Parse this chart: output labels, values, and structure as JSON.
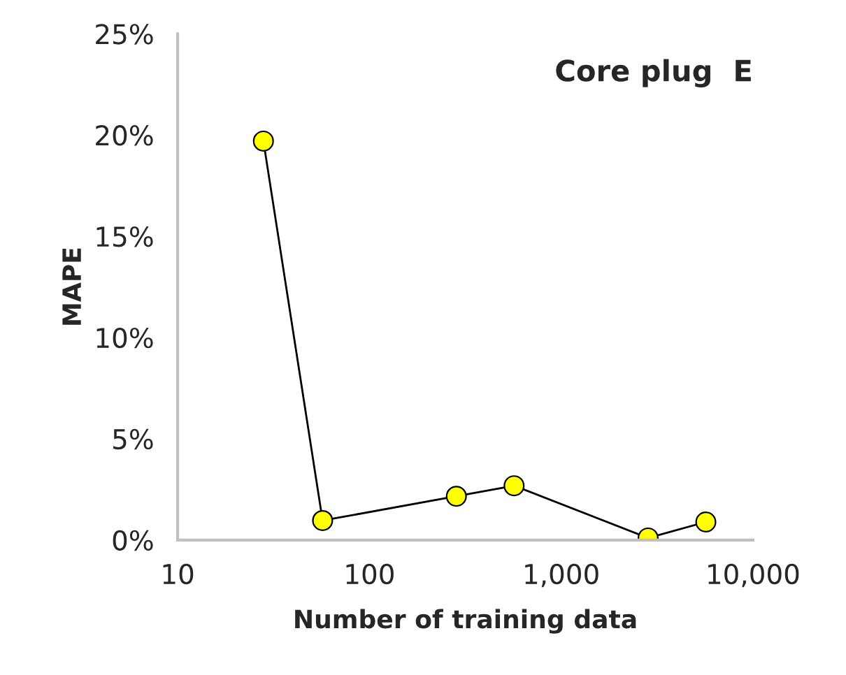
{
  "chart_data": {
    "type": "line",
    "title": "Core plug  E",
    "xlabel": "Number of training data",
    "ylabel": "MAPE",
    "log": "x",
    "marker": "circle",
    "line_style": "solid",
    "grid": false,
    "series": [
      {
        "color": "#000000",
        "x": [
          28,
          57,
          284,
          568,
          2840,
          5680
        ],
        "values": [
          19.7,
          0.96,
          2.16,
          2.68,
          0.1,
          0.89
        ]
      }
    ],
    "xlim": [
      10,
      10000
    ],
    "xticks": [
      {
        "value": 10,
        "label": "10"
      },
      {
        "value": 100,
        "label": "100"
      },
      {
        "value": 1000,
        "label": "1,000"
      },
      {
        "value": 10000,
        "label": "10,000"
      }
    ],
    "ylim": [
      0,
      25
    ],
    "yticks": [
      {
        "value": 0,
        "label": "0%"
      },
      {
        "value": 5,
        "label": "5%"
      },
      {
        "value": 10,
        "label": "10%"
      },
      {
        "value": 15,
        "label": "15%"
      },
      {
        "value": 20,
        "label": "20%"
      },
      {
        "value": 25,
        "label": "25%"
      }
    ]
  }
}
